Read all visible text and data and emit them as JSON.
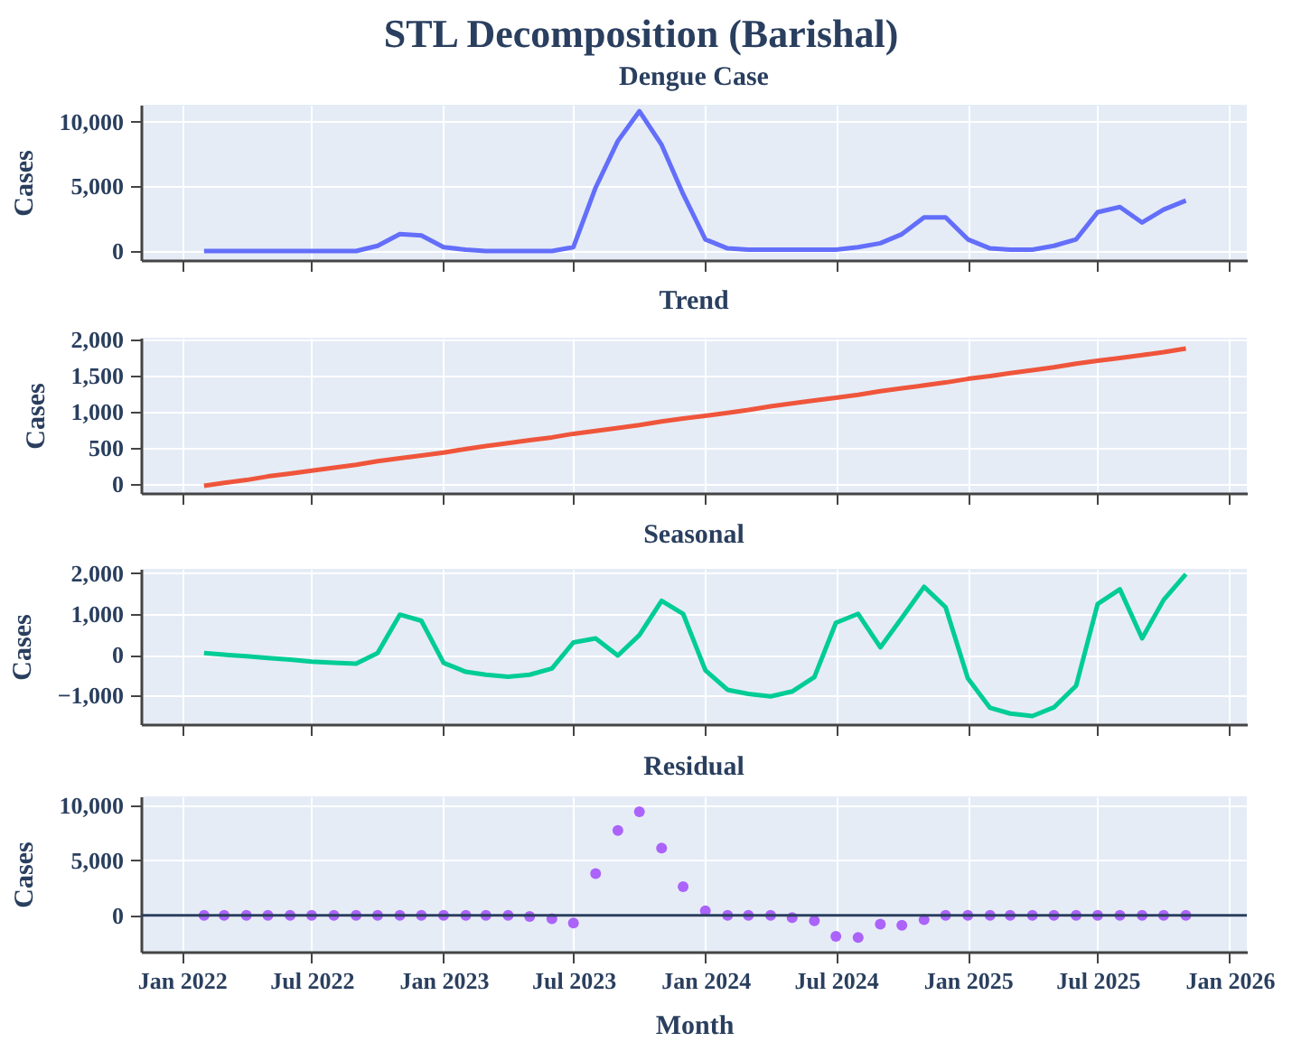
{
  "chart_data": [
    {
      "type": "line",
      "title": "STL Decomposition (Barishal)",
      "subtitle": "Dengue Case",
      "ylabel": "Cases",
      "tick_labels": "y",
      "grid": true,
      "x": [
        "2022-02",
        "2022-03",
        "2022-04",
        "2022-05",
        "2022-06",
        "2022-07",
        "2022-08",
        "2022-09",
        "2022-10",
        "2022-11",
        "2022-12",
        "2023-01",
        "2023-02",
        "2023-03",
        "2023-04",
        "2023-05",
        "2023-06",
        "2023-07",
        "2023-08",
        "2023-09",
        "2023-10",
        "2023-11",
        "2023-12",
        "2024-01",
        "2024-02",
        "2024-03",
        "2024-04",
        "2024-05",
        "2024-06",
        "2024-07",
        "2024-08",
        "2024-09",
        "2024-10",
        "2024-11",
        "2024-12",
        "2025-01",
        "2025-02",
        "2025-03",
        "2025-04",
        "2025-05",
        "2025-06",
        "2025-07",
        "2025-08",
        "2025-09",
        "2025-10",
        "2025-11"
      ],
      "series": [
        {
          "color": "#636efa",
          "values": [
            0,
            0,
            0,
            0,
            0,
            0,
            0,
            0,
            400,
            1300,
            1200,
            300,
            100,
            0,
            0,
            0,
            0,
            300,
            4900,
            8500,
            10800,
            8200,
            4400,
            900,
            200,
            100,
            100,
            100,
            100,
            100,
            300,
            600,
            1300,
            2600,
            2600,
            900,
            200,
            100,
            100,
            400,
            900,
            3000,
            3400,
            2200,
            3200,
            3900
          ]
        }
      ],
      "xlim": [
        "2021-11-05",
        "2026-01-25"
      ],
      "xticks": [
        {
          "value": "2022-01",
          "label": null
        },
        {
          "value": "2022-07",
          "label": null
        },
        {
          "value": "2023-01",
          "label": null
        },
        {
          "value": "2023-07",
          "label": null
        },
        {
          "value": "2024-01",
          "label": null
        },
        {
          "value": "2024-07",
          "label": null
        },
        {
          "value": "2025-01",
          "label": null
        },
        {
          "value": "2025-07",
          "label": null
        },
        {
          "value": "2026-01",
          "label": null
        }
      ],
      "ylim": [
        -700,
        11300
      ],
      "yticks": [
        {
          "value": 0,
          "label": "0"
        },
        {
          "value": 5000,
          "label": "5,000"
        },
        {
          "value": 10000,
          "label": "10,000"
        }
      ]
    },
    {
      "type": "line",
      "title": "Trend",
      "ylabel": "Cases",
      "tick_labels": "y",
      "grid": true,
      "x": [
        "2022-02",
        "2022-03",
        "2022-04",
        "2022-05",
        "2022-06",
        "2022-07",
        "2022-08",
        "2022-09",
        "2022-10",
        "2022-11",
        "2022-12",
        "2023-01",
        "2023-02",
        "2023-03",
        "2023-04",
        "2023-05",
        "2023-06",
        "2023-07",
        "2023-08",
        "2023-09",
        "2023-10",
        "2023-11",
        "2023-12",
        "2024-01",
        "2024-02",
        "2024-03",
        "2024-04",
        "2024-05",
        "2024-06",
        "2024-07",
        "2024-08",
        "2024-09",
        "2024-10",
        "2024-11",
        "2024-12",
        "2025-01",
        "2025-02",
        "2025-03",
        "2025-04",
        "2025-05",
        "2025-06",
        "2025-07",
        "2025-08",
        "2025-09",
        "2025-10",
        "2025-11"
      ],
      "series": [
        {
          "color": "#ef553b",
          "values": [
            -20,
            20,
            60,
            110,
            150,
            190,
            230,
            270,
            320,
            360,
            400,
            440,
            490,
            530,
            570,
            610,
            650,
            700,
            740,
            780,
            820,
            870,
            910,
            950,
            990,
            1030,
            1080,
            1120,
            1160,
            1200,
            1240,
            1290,
            1330,
            1370,
            1410,
            1460,
            1500,
            1540,
            1580,
            1620,
            1670,
            1710,
            1750,
            1790,
            1830,
            1880
          ]
        }
      ],
      "xlim": [
        "2021-11-05",
        "2026-01-25"
      ],
      "xticks": [
        {
          "value": "2022-01",
          "label": null
        },
        {
          "value": "2022-07",
          "label": null
        },
        {
          "value": "2023-01",
          "label": null
        },
        {
          "value": "2023-07",
          "label": null
        },
        {
          "value": "2024-01",
          "label": null
        },
        {
          "value": "2024-07",
          "label": null
        },
        {
          "value": "2025-01",
          "label": null
        },
        {
          "value": "2025-07",
          "label": null
        },
        {
          "value": "2026-01",
          "label": null
        }
      ],
      "ylim": [
        -120,
        2030
      ],
      "yticks": [
        {
          "value": 0,
          "label": "0"
        },
        {
          "value": 500,
          "label": "500"
        },
        {
          "value": 1000,
          "label": "1,000"
        },
        {
          "value": 1500,
          "label": "1,500"
        },
        {
          "value": 2000,
          "label": "2,000"
        }
      ]
    },
    {
      "type": "line",
      "title": "Seasonal",
      "ylabel": "Cases",
      "tick_labels": "y",
      "grid": true,
      "x": [
        "2022-02",
        "2022-03",
        "2022-04",
        "2022-05",
        "2022-06",
        "2022-07",
        "2022-08",
        "2022-09",
        "2022-10",
        "2022-11",
        "2022-12",
        "2023-01",
        "2023-02",
        "2023-03",
        "2023-04",
        "2023-05",
        "2023-06",
        "2023-07",
        "2023-08",
        "2023-09",
        "2023-10",
        "2023-11",
        "2023-12",
        "2024-01",
        "2024-02",
        "2024-03",
        "2024-04",
        "2024-05",
        "2024-06",
        "2024-07",
        "2024-08",
        "2024-09",
        "2024-10",
        "2024-11",
        "2024-12",
        "2025-01",
        "2025-02",
        "2025-03",
        "2025-04",
        "2025-05",
        "2025-06",
        "2025-07",
        "2025-08",
        "2025-09",
        "2025-10",
        "2025-11"
      ],
      "series": [
        {
          "color": "#00cc96",
          "values": [
            40,
            0,
            -40,
            -80,
            -120,
            -170,
            -200,
            -220,
            40,
            980,
            830,
            -200,
            -420,
            -490,
            -540,
            -490,
            -340,
            300,
            400,
            -20,
            480,
            1320,
            1000,
            -380,
            -860,
            -960,
            -1020,
            -900,
            -550,
            780,
            1000,
            180,
            900,
            1660,
            1160,
            -580,
            -1300,
            -1440,
            -1500,
            -1290,
            -760,
            1240,
            1600,
            400,
            1340,
            1970
          ]
        }
      ],
      "xlim": [
        "2021-11-05",
        "2026-01-25"
      ],
      "xticks": [
        {
          "value": "2022-01",
          "label": null
        },
        {
          "value": "2022-07",
          "label": null
        },
        {
          "value": "2023-01",
          "label": null
        },
        {
          "value": "2023-07",
          "label": null
        },
        {
          "value": "2024-01",
          "label": null
        },
        {
          "value": "2024-07",
          "label": null
        },
        {
          "value": "2025-01",
          "label": null
        },
        {
          "value": "2025-07",
          "label": null
        },
        {
          "value": "2026-01",
          "label": null
        }
      ],
      "ylim": [
        -1700,
        2100
      ],
      "yticks": [
        {
          "value": -1000,
          "label": "−1,000"
        },
        {
          "value": 0,
          "label": "0"
        },
        {
          "value": 1000,
          "label": "1,000"
        },
        {
          "value": 2000,
          "label": "2,000"
        }
      ]
    },
    {
      "type": "scatter",
      "title": "Residual",
      "xlabel": "Month",
      "ylabel": "Cases",
      "grid": true,
      "marker": "circle",
      "x": [
        "2022-02",
        "2022-03",
        "2022-04",
        "2022-05",
        "2022-06",
        "2022-07",
        "2022-08",
        "2022-09",
        "2022-10",
        "2022-11",
        "2022-12",
        "2023-01",
        "2023-02",
        "2023-03",
        "2023-04",
        "2023-05",
        "2023-06",
        "2023-07",
        "2023-08",
        "2023-09",
        "2023-10",
        "2023-11",
        "2023-12",
        "2024-01",
        "2024-02",
        "2024-03",
        "2024-04",
        "2024-05",
        "2024-06",
        "2024-07",
        "2024-08",
        "2024-09",
        "2024-10",
        "2024-11",
        "2024-12",
        "2025-01",
        "2025-02",
        "2025-03",
        "2025-04",
        "2025-05",
        "2025-06",
        "2025-07",
        "2025-08",
        "2025-09",
        "2025-10",
        "2025-11"
      ],
      "series": [
        {
          "color": "#ab63fa",
          "values": [
            0,
            0,
            0,
            0,
            0,
            0,
            0,
            0,
            0,
            0,
            0,
            0,
            0,
            0,
            0,
            -100,
            -300,
            -700,
            3800,
            7700,
            9400,
            6100,
            2600,
            400,
            0,
            0,
            0,
            -200,
            -500,
            -1900,
            -2000,
            -800,
            -900,
            -400,
            0,
            0,
            0,
            0,
            0,
            0,
            0,
            0,
            0,
            0,
            0,
            0
          ]
        }
      ],
      "ref_lines": [
        {
          "axis": "y",
          "value": 0,
          "color": "#2a3f5f"
        }
      ],
      "xlim": [
        "2021-11-05",
        "2026-01-25"
      ],
      "xticks": [
        {
          "value": "2022-01",
          "label": "Jan 2022"
        },
        {
          "value": "2022-07",
          "label": "Jul 2022"
        },
        {
          "value": "2023-01",
          "label": "Jan 2023"
        },
        {
          "value": "2023-07",
          "label": "Jul 2023"
        },
        {
          "value": "2024-01",
          "label": "Jan 2024"
        },
        {
          "value": "2024-07",
          "label": "Jul 2024"
        },
        {
          "value": "2025-01",
          "label": "Jan 2025"
        },
        {
          "value": "2025-07",
          "label": "Jul 2025"
        },
        {
          "value": "2026-01",
          "label": "Jan 2026"
        }
      ],
      "ylim": [
        -3300,
        10800
      ],
      "yticks": [
        {
          "value": 0,
          "label": "0"
        },
        {
          "value": 5000,
          "label": "5,000"
        },
        {
          "value": 10000,
          "label": "10,000"
        }
      ]
    }
  ]
}
